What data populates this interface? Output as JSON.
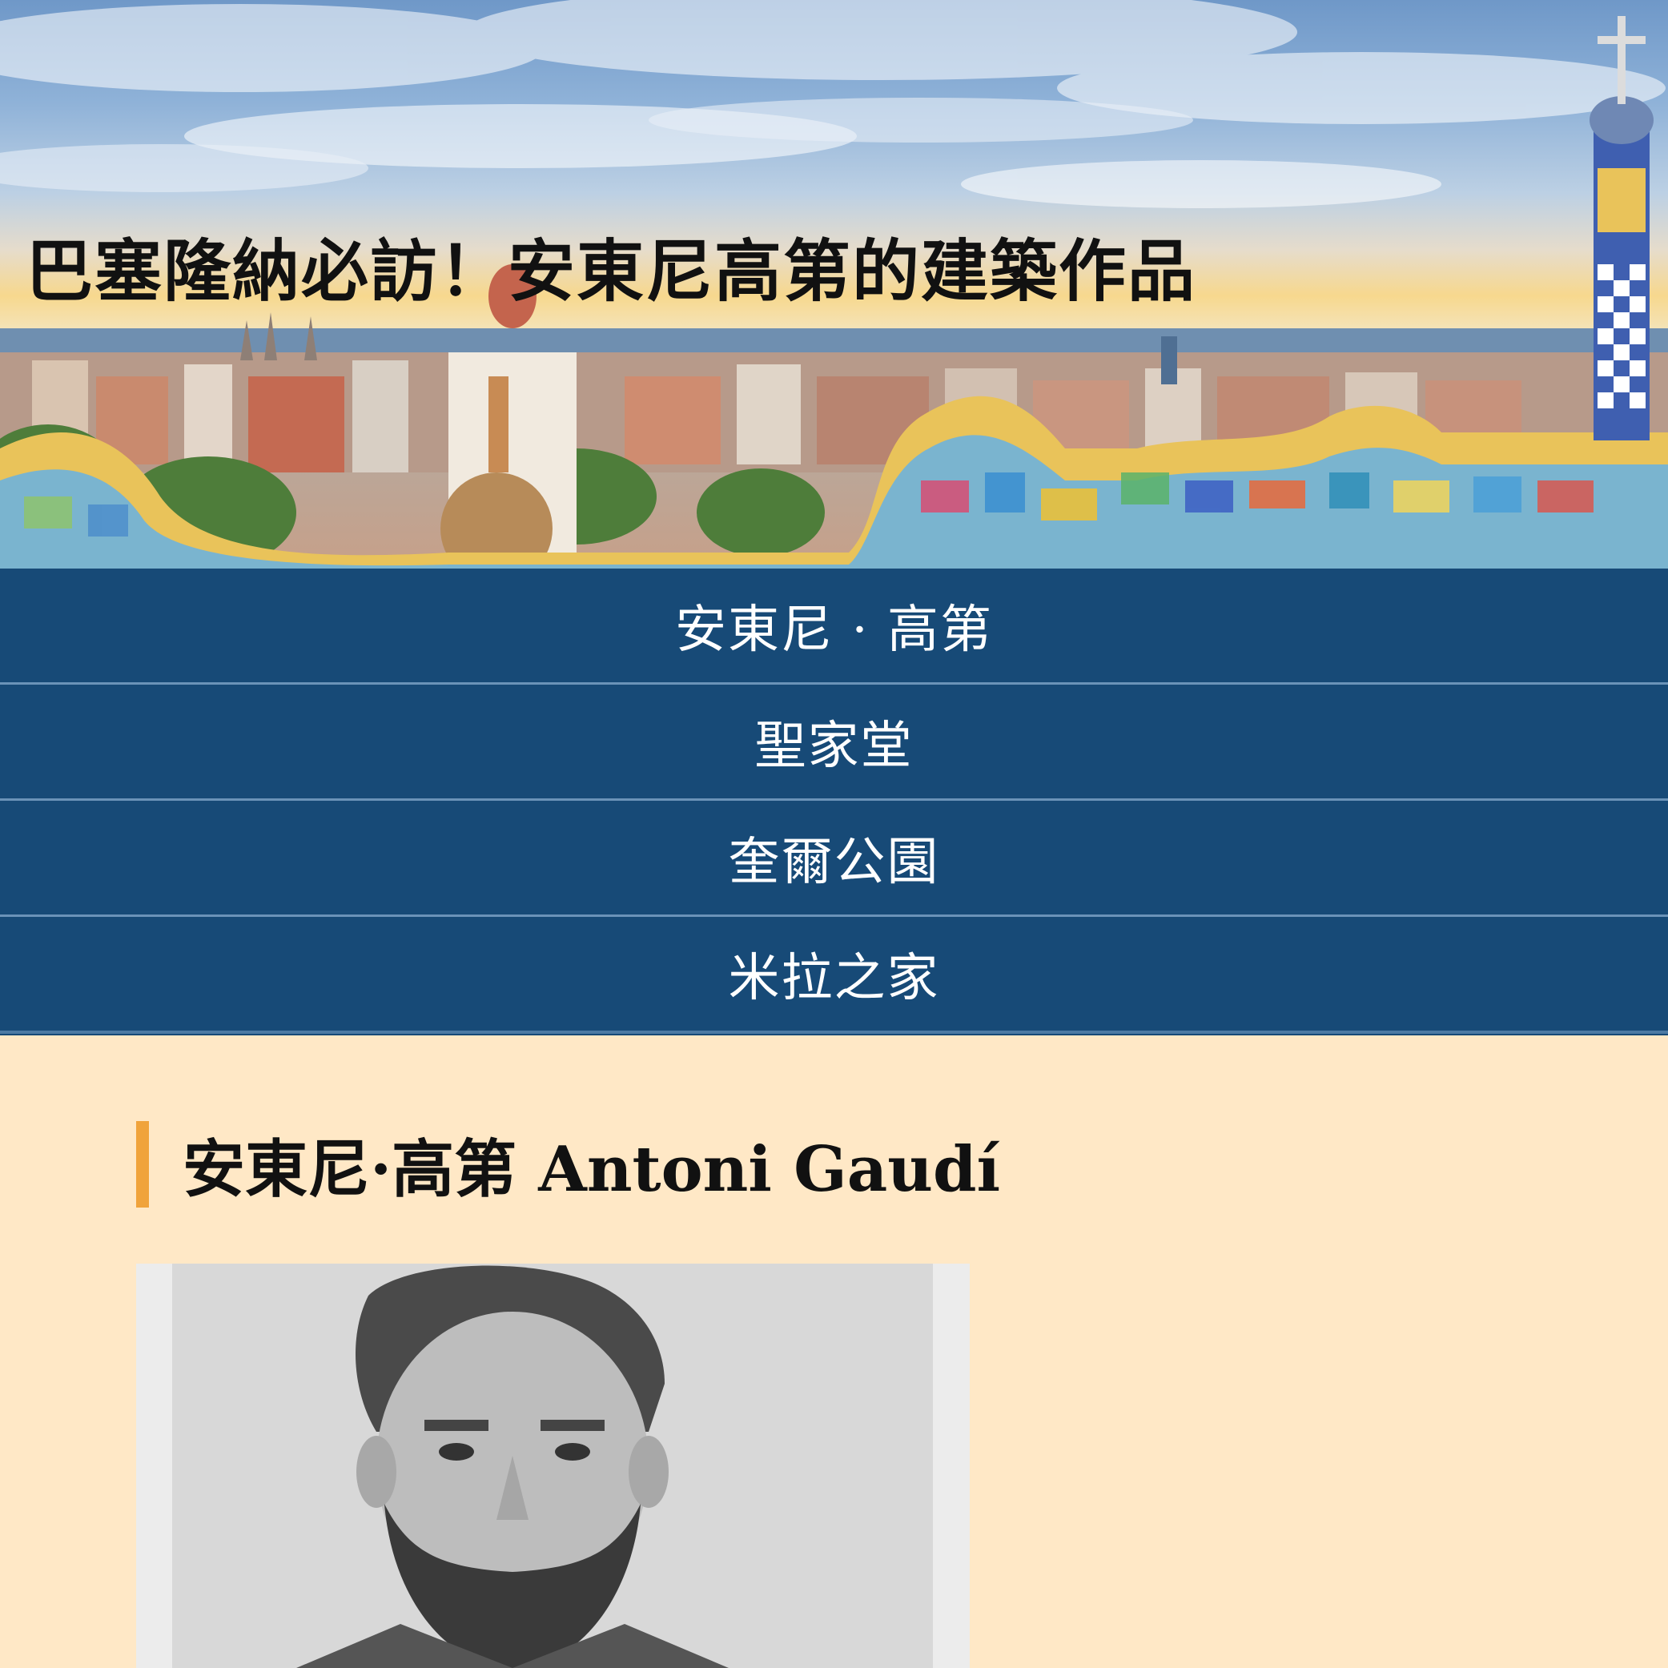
{
  "hero": {
    "title": "巴塞隆納必訪！安東尼高第的建築作品"
  },
  "nav": {
    "items": [
      {
        "label": "安東尼 · 高第"
      },
      {
        "label": "聖家堂"
      },
      {
        "label": "奎爾公園"
      },
      {
        "label": "米拉之家"
      }
    ]
  },
  "main": {
    "heading": "安東尼·高第 Antoni Gaudí"
  },
  "colors": {
    "nav_background": "#174a77",
    "nav_divider": "#6b93b8",
    "page_background": "#ffe8c6",
    "heading_accent": "#f0a33b"
  }
}
